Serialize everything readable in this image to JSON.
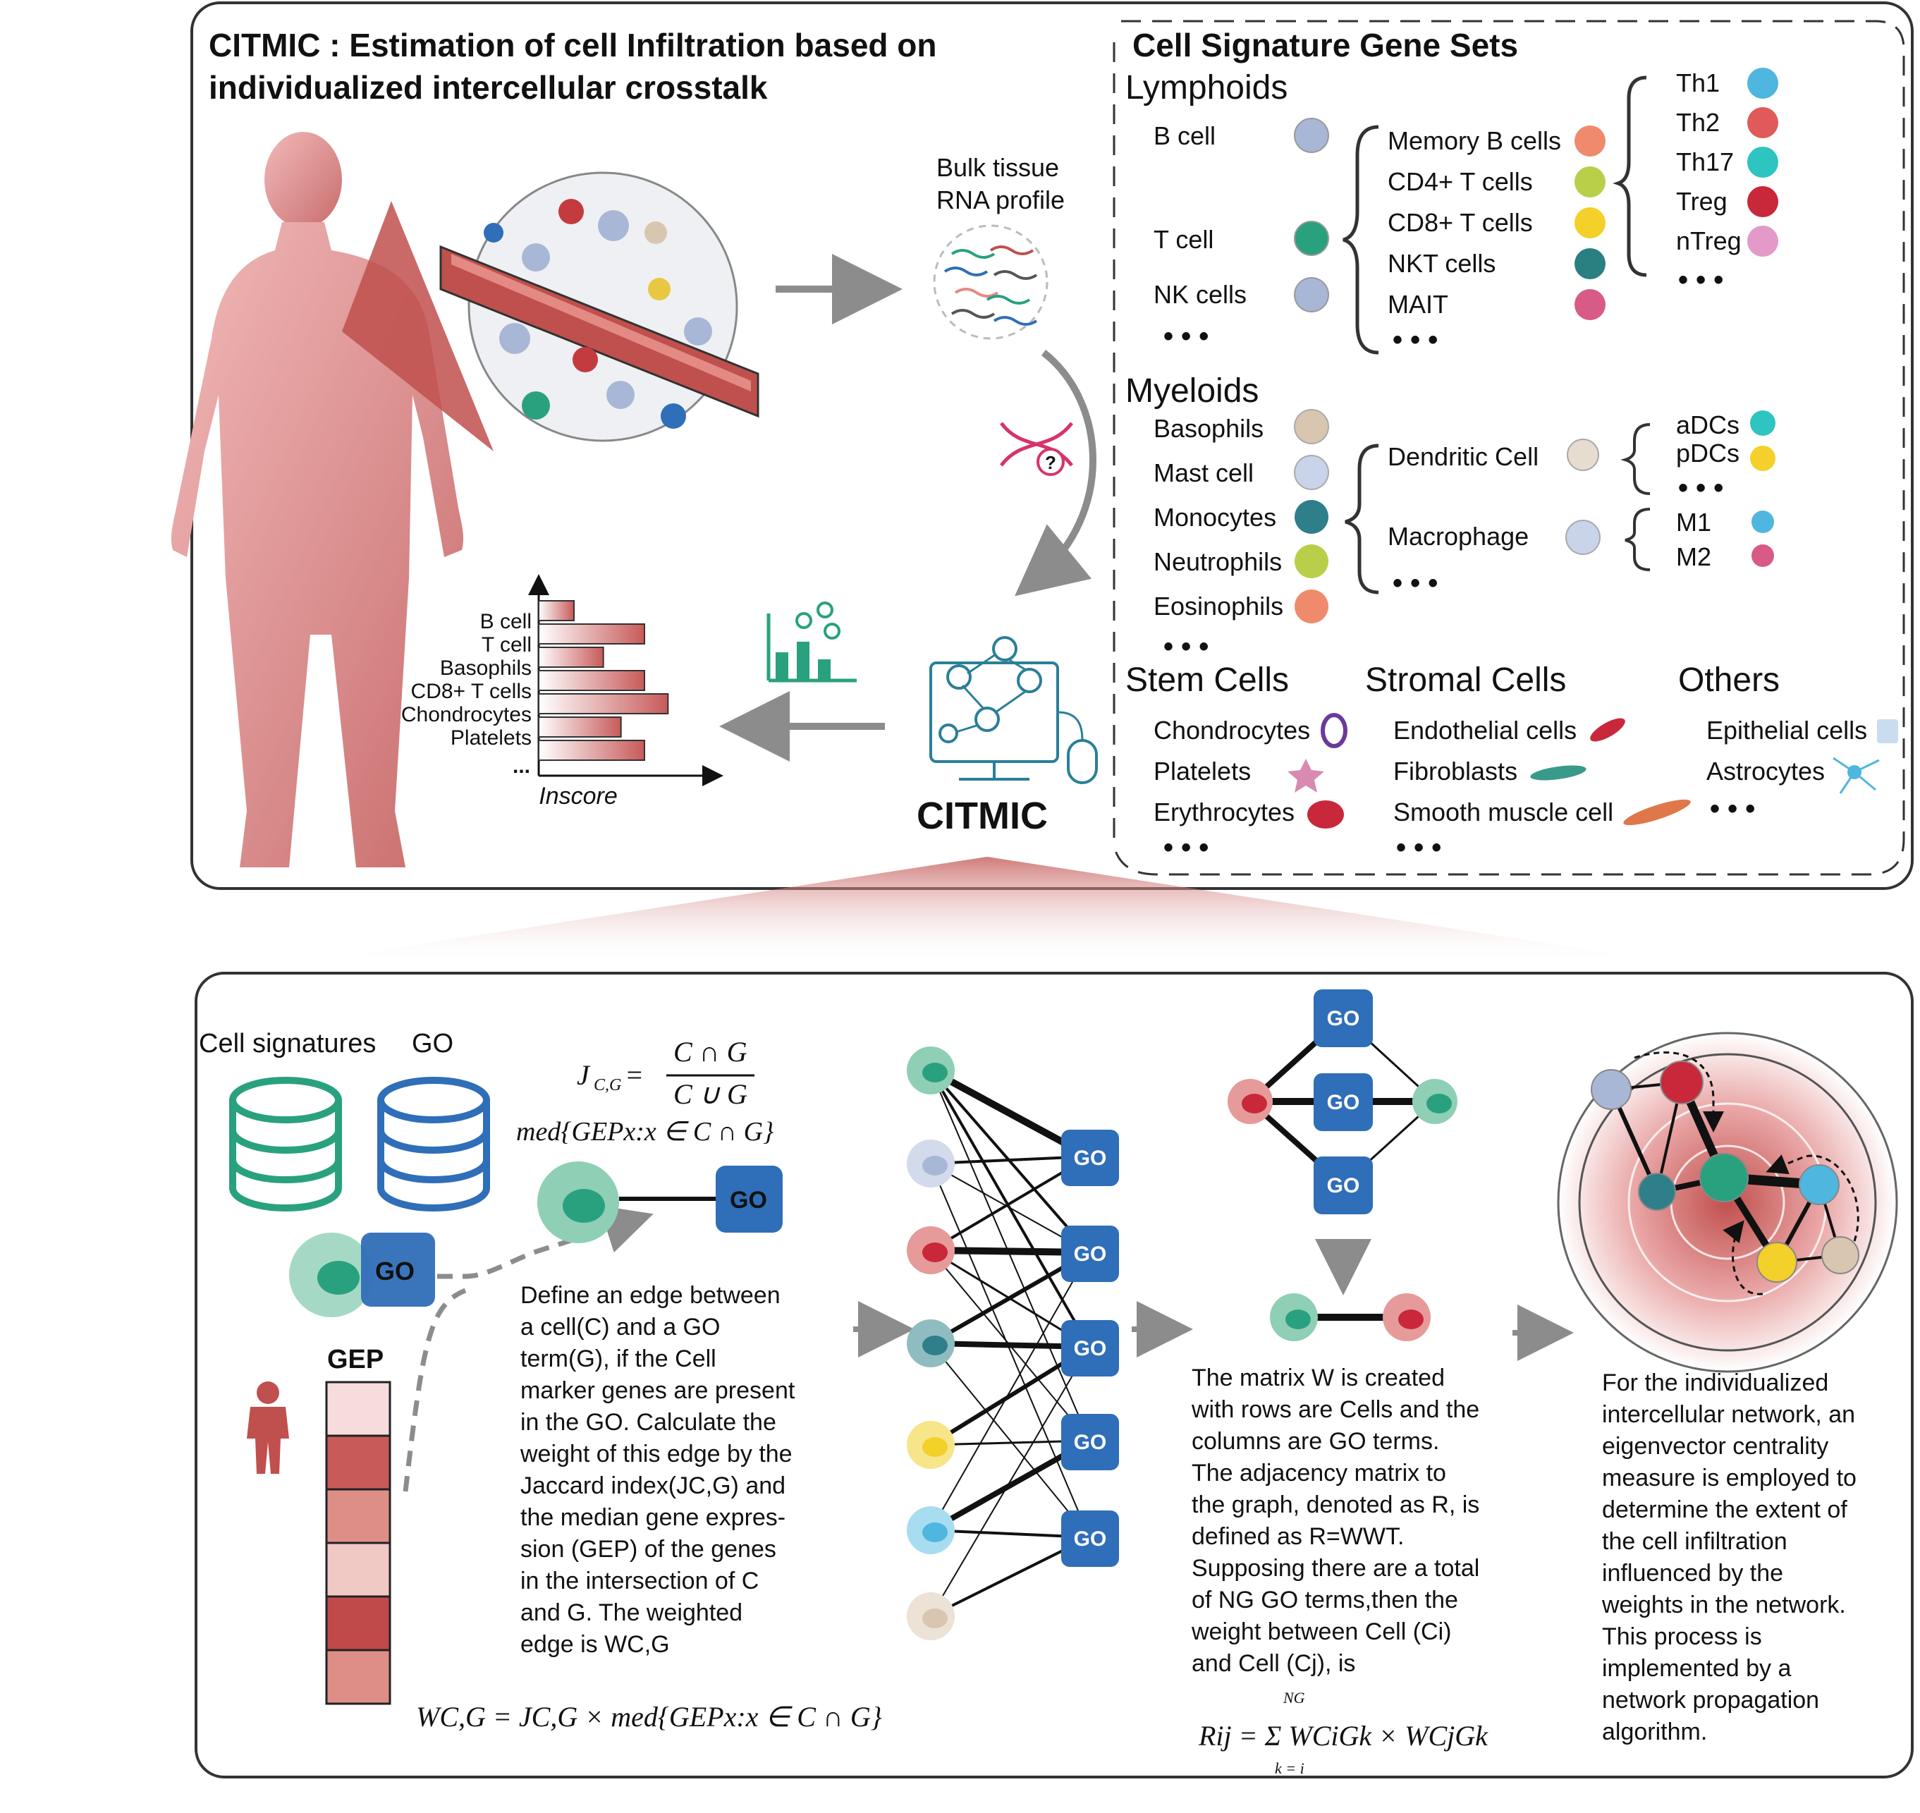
{
  "title": "CITMIC : Estimation of cell Infiltration based on individualized intercellular crosstalk",
  "bulk_label": [
    "Bulk tissue",
    "RNA profile"
  ],
  "citmic_label": "CITMIC",
  "colors": {
    "accent_red": "#c0504d",
    "go_blue": "#2f6eb8",
    "teal": "#2aa17e",
    "gray": "#8c8c8c"
  },
  "icons": [
    "human-body-icon",
    "tissue-circle-icon",
    "dna-question-icon",
    "bar-network-icon",
    "computer-network-icon",
    "database-icon",
    "person-icon"
  ],
  "chart_data": {
    "type": "bar",
    "categories": [
      "",
      "B cell",
      "T cell",
      "Basophils",
      "CD8+ T cells",
      "Chondrocytes",
      "Platelets"
    ],
    "ellipsis": "...",
    "values": [
      3,
      9,
      5.5,
      9,
      11,
      7,
      9
    ],
    "xlabel": "Inscore"
  },
  "gene_sets": {
    "title": "Cell Signature Gene Sets",
    "lymphoids": {
      "heading": "Lymphoids",
      "main": [
        "B cell",
        "T cell",
        "NK cells"
      ],
      "t_subsets": [
        "Memory B cells",
        "CD4+ T cells",
        "CD8+ T cells",
        "NKT cells",
        "MAIT"
      ],
      "cd4_subsets": [
        "Th1",
        "Th2",
        "Th17",
        "Treg",
        "nTreg"
      ]
    },
    "myeloids": {
      "heading": "Myeloids",
      "main": [
        "Basophils",
        "Mast cell",
        "Monocytes",
        "Neutrophils",
        "Eosinophils"
      ],
      "sub": [
        "Dendritic Cell",
        "Macrophage"
      ],
      "dc": [
        "aDCs",
        "pDCs"
      ],
      "macro": [
        "M1",
        "M2"
      ]
    },
    "stem": {
      "heading": "Stem Cells",
      "items": [
        "Chondrocytes",
        "Platelets",
        "Erythrocytes"
      ]
    },
    "stromal": {
      "heading": "Stromal Cells",
      "items": [
        "Endothelial cells",
        "Fibroblasts",
        "Smooth muscle cell"
      ]
    },
    "others": {
      "heading": "Others",
      "items": [
        "Epithelial cells",
        "Astrocytes"
      ]
    }
  },
  "bottom": {
    "cell_signatures": "Cell signatures",
    "go": "GO",
    "gep": "GEP",
    "jaccard_lhs": "J",
    "jaccard_sub": "C,G",
    "jaccard_num": "C ∩ G",
    "jaccard_den": "C ∪ G",
    "median_expr": "med{GEPx:x ∈ C ∩ G}",
    "define_text": [
      "Define an edge between",
      "a cell(C) and a GO",
      "term(G), if the Cell",
      "marker genes are present",
      "in the GO. Calculate the",
      "weight of this edge by the",
      "Jaccard index(JC,G) and",
      "the median gene expres-",
      "sion (GEP) of the genes",
      "in the intersection of C",
      "and G. The weighted",
      "edge is WC,G"
    ],
    "weight_formula": "WC,G = JC,G × med{GEPx:x ∈ C ∩ G}",
    "matrix_text": [
      "The matrix W is created",
      "with rows are Cells and the",
      "columns are GO terms.",
      "The adjacency matrix to",
      "the graph, denoted as R, is",
      "defined as R=WWT.",
      "Supposing there are a total",
      "of NG GO terms,then the",
      "weight between Cell (Ci)",
      "and Cell (Cj), is"
    ],
    "r_formula": "Rij = Σ WCiGk × WCjGk",
    "sum_upper": "NG",
    "sum_lower": "k = i",
    "final_text": [
      "For the individualized",
      "intercellular network, an",
      "eigenvector centrality",
      "measure is employed to",
      "determine the extent of",
      "the cell infiltration",
      "influenced by the",
      "weights in the network.",
      "This process is",
      "implemented by a",
      "network propagation",
      "algorithm."
    ]
  }
}
